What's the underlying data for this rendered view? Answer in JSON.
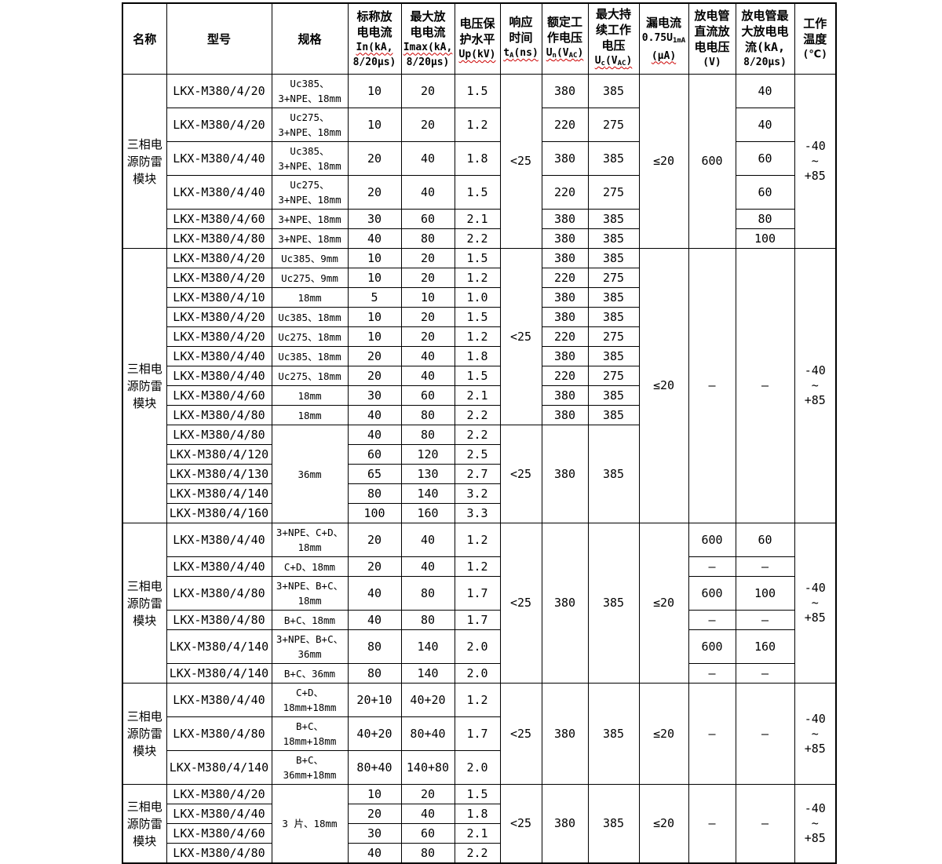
{
  "table": {
    "headers": [
      "名称",
      "型号",
      "规格",
      "标称放\n电电流\nIn(kA,\n8/20μs)",
      "最大放\n电电流\nImax(kA,\n8/20μs)",
      "电压保\n护水平\nUp(kV)",
      "响应\n时间\ntA(ns)",
      "额定工\n作电压\nUn(VAC)",
      "最大持\n续工作\n电压\nUc(VAC)",
      "漏电流\n0.75U1mA\n(μA)",
      "放电管\n直流放\n电电压\n(V)",
      "放电管最\n大放电电\n流(kA,\n8/20μs)",
      "工作\n温度\n(℃)"
    ],
    "sections": [
      {
        "name": "三相电源防雷模块",
        "rows": [
          [
            "LKX-M380/4/20",
            "Uc385、\n3+NPE、18mm",
            "10",
            "20",
            "1.5",
            {
              "t": "<25",
              "rs": 6
            },
            "380",
            "385",
            {
              "t": "≤20",
              "rs": 6
            },
            {
              "t": "600",
              "rs": 6
            },
            "40",
            {
              "t": "-40\n~\n+85",
              "rs": 6
            }
          ],
          [
            "LKX-M380/4/20",
            "Uc275、\n3+NPE、18mm",
            "10",
            "20",
            "1.2",
            null,
            "220",
            "275",
            null,
            null,
            "40",
            null
          ],
          [
            "LKX-M380/4/40",
            "Uc385、\n3+NPE、18mm",
            "20",
            "40",
            "1.8",
            null,
            "380",
            "385",
            null,
            null,
            "60",
            null
          ],
          [
            "LKX-M380/4/40",
            "Uc275、\n3+NPE、18mm",
            "20",
            "40",
            "1.5",
            null,
            "220",
            "275",
            null,
            null,
            "60",
            null
          ],
          [
            "LKX-M380/4/60",
            "3+NPE、18mm",
            "30",
            "60",
            "2.1",
            null,
            "380",
            "385",
            null,
            null,
            "80",
            null
          ],
          [
            "LKX-M380/4/80",
            "3+NPE、18mm",
            "40",
            "80",
            "2.2",
            null,
            "380",
            "385",
            null,
            null,
            "100",
            null
          ]
        ]
      },
      {
        "name": "三相电源防雷模块",
        "rows": [
          [
            "LKX-M380/4/20",
            "Uc385、9mm",
            "10",
            "20",
            "1.5",
            {
              "t": "<25",
              "rs": 9
            },
            "380",
            "385",
            {
              "t": "≤20",
              "rs": 14
            },
            {
              "t": "—",
              "rs": 14
            },
            {
              "t": "—",
              "rs": 14
            },
            {
              "t": "-40\n~\n+85",
              "rs": 14
            }
          ],
          [
            "LKX-M380/4/20",
            "Uc275、9mm",
            "10",
            "20",
            "1.2",
            null,
            "220",
            "275",
            null,
            null,
            null,
            null
          ],
          [
            "LKX-M380/4/10",
            "18mm",
            "5",
            "10",
            "1.0",
            null,
            "380",
            "385",
            null,
            null,
            null,
            null
          ],
          [
            "LKX-M380/4/20",
            "Uc385、18mm",
            "10",
            "20",
            "1.5",
            null,
            "380",
            "385",
            null,
            null,
            null,
            null
          ],
          [
            "LKX-M380/4/20",
            "Uc275、18mm",
            "10",
            "20",
            "1.2",
            null,
            "220",
            "275",
            null,
            null,
            null,
            null
          ],
          [
            "LKX-M380/4/40",
            "Uc385、18mm",
            "20",
            "40",
            "1.8",
            null,
            "380",
            "385",
            null,
            null,
            null,
            null
          ],
          [
            "LKX-M380/4/40",
            "Uc275、18mm",
            "20",
            "40",
            "1.5",
            null,
            "220",
            "275",
            null,
            null,
            null,
            null
          ],
          [
            "LKX-M380/4/60",
            "18mm",
            "30",
            "60",
            "2.1",
            null,
            "380",
            "385",
            null,
            null,
            null,
            null
          ],
          [
            "LKX-M380/4/80",
            "18mm",
            "40",
            "80",
            "2.2",
            null,
            "380",
            "385",
            null,
            null,
            null,
            null
          ],
          [
            "LKX-M380/4/80",
            {
              "t": "36mm",
              "rs": 5
            },
            "40",
            "80",
            "2.2",
            {
              "t": "<25",
              "rs": 5
            },
            {
              "t": "380",
              "rs": 5
            },
            {
              "t": "385",
              "rs": 5
            },
            null,
            null,
            null,
            null
          ],
          [
            "LKX-M380/4/120",
            null,
            "60",
            "120",
            "2.5",
            null,
            null,
            null,
            null,
            null,
            null,
            null
          ],
          [
            "LKX-M380/4/130",
            null,
            "65",
            "130",
            "2.7",
            null,
            null,
            null,
            null,
            null,
            null,
            null
          ],
          [
            "LKX-M380/4/140",
            null,
            "80",
            "140",
            "3.2",
            null,
            null,
            null,
            null,
            null,
            null,
            null
          ],
          [
            "LKX-M380/4/160",
            null,
            "100",
            "160",
            "3.3",
            null,
            null,
            null,
            null,
            null,
            null,
            null
          ]
        ]
      },
      {
        "name": "三相电源防雷模块",
        "rows": [
          [
            "LKX-M380/4/40",
            "3+NPE、C+D、\n18mm",
            "20",
            "40",
            "1.2",
            {
              "t": "<25",
              "rs": 6
            },
            {
              "t": "380",
              "rs": 6
            },
            {
              "t": "385",
              "rs": 6
            },
            {
              "t": "≤20",
              "rs": 6
            },
            "600",
            "60",
            {
              "t": "-40\n~\n+85",
              "rs": 6
            }
          ],
          [
            "LKX-M380/4/40",
            "C+D、18mm",
            "20",
            "40",
            "1.2",
            null,
            null,
            null,
            null,
            "—",
            "—",
            null
          ],
          [
            "LKX-M380/4/80",
            "3+NPE、B+C、\n18mm",
            "40",
            "80",
            "1.7",
            null,
            null,
            null,
            null,
            "600",
            "100",
            null
          ],
          [
            "LKX-M380/4/80",
            "B+C、18mm",
            "40",
            "80",
            "1.7",
            null,
            null,
            null,
            null,
            "—",
            "—",
            null
          ],
          [
            "LKX-M380/4/140",
            "3+NPE、B+C、\n36mm",
            "80",
            "140",
            "2.0",
            null,
            null,
            null,
            null,
            "600",
            "160",
            null
          ],
          [
            "LKX-M380/4/140",
            "B+C、36mm",
            "80",
            "140",
            "2.0",
            null,
            null,
            null,
            null,
            "—",
            "—",
            null
          ]
        ]
      },
      {
        "name": "三相电源防雷模块",
        "rows": [
          [
            "LKX-M380/4/40",
            "C+D、\n18mm+18mm",
            "20+10",
            "40+20",
            "1.2",
            {
              "t": "<25",
              "rs": 3
            },
            {
              "t": "380",
              "rs": 3
            },
            {
              "t": "385",
              "rs": 3
            },
            {
              "t": "≤20",
              "rs": 3
            },
            {
              "t": "—",
              "rs": 3
            },
            {
              "t": "—",
              "rs": 3
            },
            {
              "t": "-40\n~\n+85",
              "rs": 3
            }
          ],
          [
            "LKX-M380/4/80",
            "B+C、\n18mm+18mm",
            "40+20",
            "80+40",
            "1.7",
            null,
            null,
            null,
            null,
            null,
            null,
            null
          ],
          [
            "LKX-M380/4/140",
            "B+C、\n36mm+18mm",
            "80+40",
            "140+80",
            "2.0",
            null,
            null,
            null,
            null,
            null,
            null,
            null
          ]
        ]
      },
      {
        "name": "三相电源防雷模块",
        "rows": [
          [
            "LKX-M380/4/20",
            {
              "t": "3 片、18mm",
              "rs": 4
            },
            "10",
            "20",
            "1.5",
            {
              "t": "<25",
              "rs": 4
            },
            {
              "t": "380",
              "rs": 4
            },
            {
              "t": "385",
              "rs": 4
            },
            {
              "t": "≤20",
              "rs": 4
            },
            {
              "t": "—",
              "rs": 4
            },
            {
              "t": "—",
              "rs": 4
            },
            {
              "t": "-40\n~\n+85",
              "rs": 4
            }
          ],
          [
            "LKX-M380/4/40",
            null,
            "20",
            "40",
            "1.8",
            null,
            null,
            null,
            null,
            null,
            null,
            null
          ],
          [
            "LKX-M380/4/60",
            null,
            "30",
            "60",
            "2.1",
            null,
            null,
            null,
            null,
            null,
            null,
            null
          ],
          [
            "LKX-M380/4/80",
            null,
            "40",
            "80",
            "2.2",
            null,
            null,
            null,
            null,
            null,
            null,
            null
          ]
        ]
      }
    ]
  }
}
